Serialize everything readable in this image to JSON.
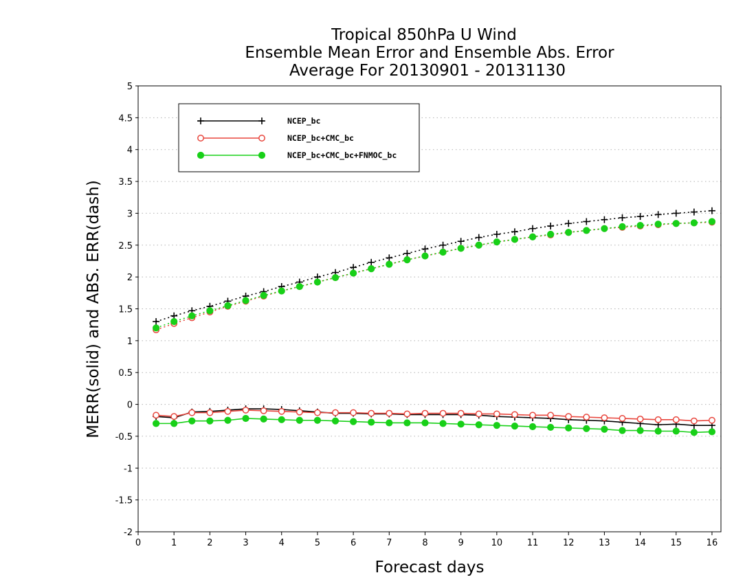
{
  "chart_data": {
    "type": "line",
    "title": [
      "Tropical 850hPa U Wind",
      "Ensemble Mean Error and Ensemble Abs. Error",
      "Average For 20130901 - 20131130"
    ],
    "xlabel": "Forecast days",
    "ylabel": "MERR(solid) and ABS. ERR(dash)",
    "xlim": [
      0,
      16.25
    ],
    "ylim": [
      -2,
      5
    ],
    "xticks": [
      0,
      1,
      2,
      3,
      4,
      5,
      6,
      7,
      8,
      9,
      10,
      11,
      12,
      13,
      14,
      15,
      16
    ],
    "yticks": [
      -2,
      -1.5,
      -1,
      -0.5,
      0,
      0.5,
      1,
      1.5,
      2,
      2.5,
      3,
      3.5,
      4,
      4.5,
      5
    ],
    "ytick_labels": [
      "-2",
      "-1.5",
      "-1",
      "-0.5",
      "0",
      "0.5",
      "1",
      "1.5",
      "2",
      "2.5",
      "3",
      "3.5",
      "4",
      "4.5",
      "5"
    ],
    "grid": "horizontal dotted",
    "legend_position": "top-left",
    "x": [
      0.5,
      1,
      1.5,
      2,
      2.5,
      3,
      3.5,
      4,
      4.5,
      5,
      5.5,
      6,
      6.5,
      7,
      7.5,
      8,
      8.5,
      9,
      9.5,
      10,
      10.5,
      11,
      11.5,
      12,
      12.5,
      13,
      13.5,
      14,
      14.5,
      15,
      15.5,
      16
    ],
    "series": [
      {
        "name": "NCEP_bc",
        "color": "#000000",
        "marker": "plus",
        "merr": [
          -0.19,
          -0.21,
          -0.12,
          -0.11,
          -0.09,
          -0.07,
          -0.07,
          -0.08,
          -0.1,
          -0.12,
          -0.14,
          -0.14,
          -0.15,
          -0.15,
          -0.16,
          -0.16,
          -0.16,
          -0.16,
          -0.17,
          -0.19,
          -0.2,
          -0.21,
          -0.22,
          -0.24,
          -0.25,
          -0.26,
          -0.28,
          -0.3,
          -0.32,
          -0.31,
          -0.33,
          -0.33
        ],
        "abs_err": [
          1.3,
          1.39,
          1.47,
          1.54,
          1.62,
          1.7,
          1.77,
          1.85,
          1.92,
          2.0,
          2.07,
          2.15,
          2.23,
          2.3,
          2.37,
          2.44,
          2.5,
          2.56,
          2.62,
          2.67,
          2.71,
          2.76,
          2.8,
          2.84,
          2.87,
          2.9,
          2.93,
          2.95,
          2.98,
          3.0,
          3.02,
          3.04
        ]
      },
      {
        "name": "NCEP_bc+CMC_bc",
        "color": "#e8453c",
        "marker": "open-circle",
        "merr": [
          -0.17,
          -0.19,
          -0.13,
          -0.13,
          -0.11,
          -0.09,
          -0.1,
          -0.11,
          -0.12,
          -0.13,
          -0.13,
          -0.13,
          -0.14,
          -0.14,
          -0.15,
          -0.14,
          -0.14,
          -0.14,
          -0.15,
          -0.15,
          -0.16,
          -0.17,
          -0.17,
          -0.19,
          -0.2,
          -0.21,
          -0.22,
          -0.23,
          -0.24,
          -0.24,
          -0.26,
          -0.25
        ],
        "abs_err": [
          1.17,
          1.27,
          1.36,
          1.45,
          1.54,
          1.62,
          1.7,
          1.78,
          1.85,
          1.92,
          1.99,
          2.06,
          2.13,
          2.2,
          2.27,
          2.33,
          2.39,
          2.45,
          2.5,
          2.55,
          2.59,
          2.63,
          2.66,
          2.7,
          2.73,
          2.76,
          2.78,
          2.8,
          2.82,
          2.84,
          2.85,
          2.86
        ]
      },
      {
        "name": "NCEP_bc+CMC_bc+FNMOC_bc",
        "color": "#18d018",
        "marker": "filled-circle",
        "merr": [
          -0.3,
          -0.3,
          -0.26,
          -0.26,
          -0.25,
          -0.22,
          -0.23,
          -0.24,
          -0.25,
          -0.25,
          -0.26,
          -0.27,
          -0.28,
          -0.29,
          -0.29,
          -0.29,
          -0.3,
          -0.31,
          -0.32,
          -0.33,
          -0.34,
          -0.35,
          -0.36,
          -0.37,
          -0.38,
          -0.39,
          -0.41,
          -0.41,
          -0.42,
          -0.42,
          -0.44,
          -0.43
        ],
        "abs_err": [
          1.2,
          1.3,
          1.39,
          1.47,
          1.55,
          1.63,
          1.71,
          1.78,
          1.85,
          1.92,
          1.99,
          2.06,
          2.13,
          2.2,
          2.27,
          2.33,
          2.39,
          2.45,
          2.5,
          2.55,
          2.59,
          2.63,
          2.67,
          2.7,
          2.73,
          2.76,
          2.79,
          2.81,
          2.83,
          2.84,
          2.85,
          2.87
        ]
      }
    ]
  }
}
